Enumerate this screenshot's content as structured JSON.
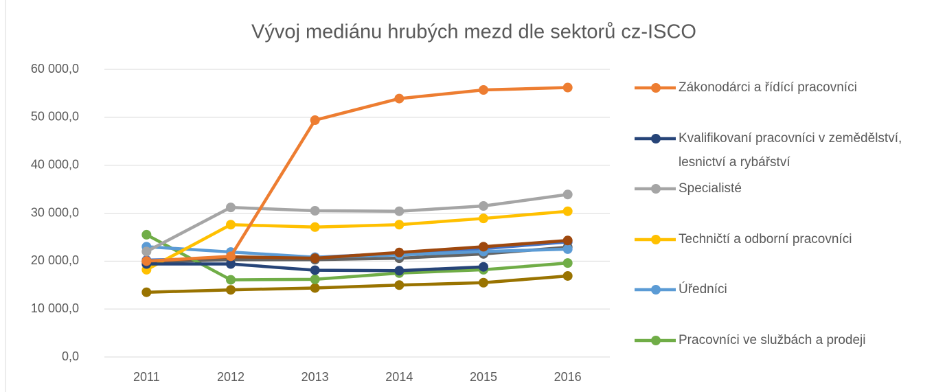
{
  "chart_data": {
    "type": "line",
    "title": "Vývoj mediánu hrubých mezd dle sektorů cz-ISCO",
    "categories": [
      "2011",
      "2012",
      "2013",
      "2014",
      "2015",
      "2016"
    ],
    "ylim": [
      0,
      60000
    ],
    "yticks": [
      {
        "value": 0,
        "label": "0,0"
      },
      {
        "value": 10000,
        "label": "10 000,0"
      },
      {
        "value": 20000,
        "label": "20 000,0"
      },
      {
        "value": 30000,
        "label": "30 000,0"
      },
      {
        "value": 40000,
        "label": "40 000,0"
      },
      {
        "value": 50000,
        "label": "50 000,0"
      },
      {
        "value": 60000,
        "label": "60 000,0"
      }
    ],
    "grid": true,
    "legend": "right",
    "series": [
      {
        "color": "#4472C4",
        "values": [
          20200,
          20600,
          20800,
          21600,
          22600,
          24000
        ]
      },
      {
        "color": "#636363",
        "values": [
          19800,
          20300,
          20300,
          20600,
          21500,
          22900
        ]
      },
      {
        "color": "#997300",
        "values": [
          13500,
          14000,
          14400,
          15000,
          15500,
          16900
        ]
      },
      {
        "name": "Pracovníci ve službách a prodeji",
        "color": "#70AD47",
        "values": [
          25500,
          16100,
          16200,
          17500,
          18200,
          19600
        ]
      },
      {
        "name": "Úředníci",
        "color": "#5B9BD5",
        "values": [
          23000,
          21900,
          20800,
          21300,
          22000,
          22500
        ]
      },
      {
        "name": "Techničtí a odborní pracovníci",
        "color": "#FFC000",
        "values": [
          18200,
          27600,
          27100,
          27600,
          28900,
          30400
        ]
      },
      {
        "name": "Specialisté",
        "color": "#A5A5A5",
        "values": [
          22000,
          31200,
          30500,
          30400,
          31500,
          33900
        ]
      },
      {
        "color": "#9E480E",
        "values": [
          20000,
          20900,
          20600,
          21800,
          23000,
          24300
        ]
      },
      {
        "name": "Kvalifikovaní pracovníci v zemědělství, lesnictví a rybářství",
        "color": "#264478",
        "values": [
          19400,
          19400,
          18100,
          18000,
          18800,
          null
        ]
      },
      {
        "name": "Zákonodárci a řídící pracovníci",
        "color": "#ED7D31",
        "values": [
          20000,
          21000,
          49400,
          53900,
          55700,
          56200
        ]
      }
    ]
  }
}
